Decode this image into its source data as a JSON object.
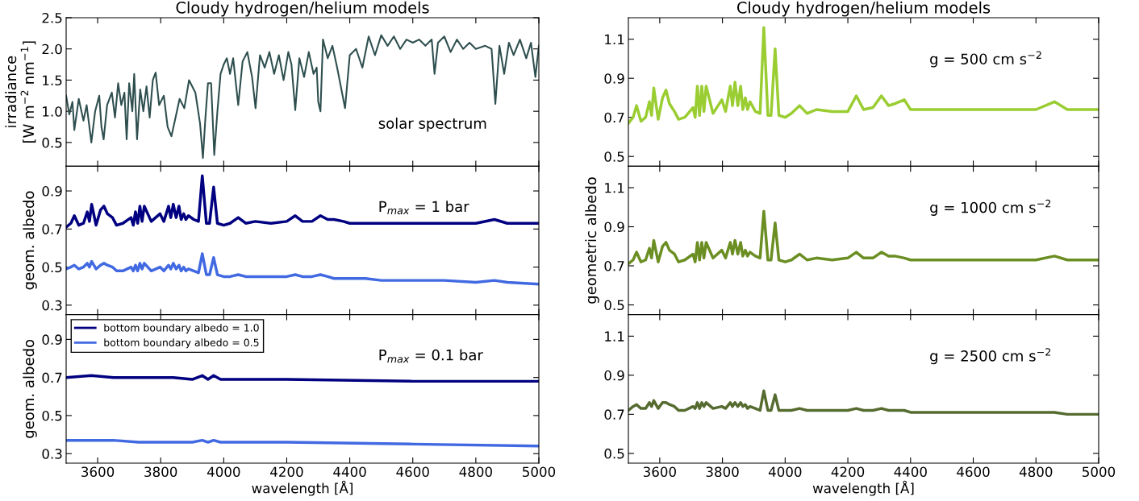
{
  "chart_data": [
    {
      "type": "line",
      "title": "Cloudy hydrogen/helium models",
      "ylabel": "irradiance\n[W m$^{−2}$ nm$^{−1}$]",
      "annotations": [
        "solar spectrum"
      ],
      "xlim": [
        3500,
        5000
      ],
      "xticks": [
        3600,
        3800,
        4000,
        4200,
        4400,
        4600,
        4800,
        5000
      ],
      "ylim": [
        0.12,
        2.5
      ],
      "yticks": [
        0.5,
        {
          "value": 1,
          "label": "1.0"
        },
        1.5,
        {
          "value": 2,
          "label": "2.0"
        },
        2.5
      ],
      "tick_labels": "y",
      "x": [
        3500,
        3510,
        3520,
        3526,
        3540,
        3555,
        3565,
        3580,
        3592,
        3605,
        3612,
        3619,
        3630,
        3645,
        3655,
        3665,
        3675,
        3685,
        3692,
        3700,
        3710,
        3716,
        3725,
        3735,
        3745,
        3755,
        3765,
        3775,
        3784,
        3795,
        3810,
        3822,
        3834,
        3845,
        3860,
        3875,
        3890,
        3900,
        3910,
        3925,
        3934,
        3942,
        3950,
        3960,
        3970,
        3980,
        3990,
        4000,
        4010,
        4020,
        4030,
        4046,
        4060,
        4075,
        4090,
        4101,
        4115,
        4130,
        4145,
        4160,
        4175,
        4190,
        4205,
        4215,
        4227,
        4240,
        4255,
        4270,
        4285,
        4295,
        4300,
        4307,
        4315,
        4330,
        4345,
        4360,
        4385,
        4400,
        4420,
        4440,
        4460,
        4480,
        4500,
        4520,
        4540,
        4560,
        4580,
        4600,
        4620,
        4640,
        4660,
        4669,
        4680,
        4700,
        4720,
        4740,
        4760,
        4780,
        4800,
        4830,
        4850,
        4862,
        4875,
        4890,
        4905,
        4920,
        4940,
        4960,
        4975,
        4989,
        5000
      ],
      "series": [
        {
          "color": "#2f4f4f",
          "values": [
            1.25,
            0.95,
            1.15,
            0.7,
            1.2,
            0.85,
            1.1,
            0.5,
            1.0,
            1.25,
            0.75,
            0.55,
            1.1,
            1.3,
            0.9,
            1.45,
            1.1,
            1.3,
            0.55,
            1.45,
            1.0,
            1.6,
            0.55,
            1.35,
            1.0,
            1.4,
            0.9,
            1.5,
            1.62,
            1.1,
            1.25,
            0.75,
            0.6,
            0.85,
            1.2,
            1.05,
            1.5,
            1.4,
            1.3,
            0.8,
            0.25,
            0.9,
            1.45,
            1.45,
            0.3,
            1.0,
            1.6,
            1.75,
            1.85,
            1.6,
            1.85,
            1.1,
            1.8,
            1.95,
            1.55,
            1.05,
            1.9,
            1.7,
            1.95,
            1.6,
            1.9,
            1.5,
            1.95,
            1.75,
            1.02,
            1.85,
            1.55,
            1.95,
            1.6,
            1.7,
            1.15,
            1.0,
            2.15,
            1.85,
            2.05,
            1.7,
            1.05,
            1.9,
            2.0,
            1.7,
            2.2,
            1.9,
            2.22,
            2.05,
            2.2,
            2.0,
            2.15,
            2.1,
            2.15,
            2.05,
            2.15,
            1.6,
            2.1,
            2.2,
            1.95,
            2.15,
            2.0,
            2.1,
            2.0,
            2.05,
            2.0,
            1.12,
            2.05,
            1.6,
            2.1,
            1.9,
            2.15,
            1.85,
            2.1,
            1.55,
            2.05
          ]
        }
      ]
    },
    {
      "type": "line",
      "ylabel": "geom. albedo",
      "annotations": [
        "P$_{max}$ = 1 bar"
      ],
      "xlim": [
        3500,
        5000
      ],
      "xticks": [
        3600,
        3800,
        4000,
        4200,
        4400,
        4600,
        4800,
        5000
      ],
      "ylim": [
        0.25,
        1.03
      ],
      "yticks": [
        0.3,
        0.5,
        0.7,
        0.9
      ],
      "tick_labels": "y",
      "x": [
        3500,
        3515,
        3526,
        3540,
        3555,
        3567,
        3574,
        3581,
        3595,
        3609,
        3620,
        3631,
        3647,
        3660,
        3680,
        3706,
        3713,
        3720,
        3727,
        3734,
        3741,
        3748,
        3770,
        3798,
        3810,
        3825,
        3832,
        3840,
        3849,
        3858,
        3865,
        3873,
        3880,
        3888,
        3905,
        3920,
        3932,
        3945,
        3955,
        3968,
        3980,
        4000,
        4020,
        4046,
        4070,
        4100,
        4150,
        4200,
        4227,
        4250,
        4280,
        4307,
        4330,
        4350,
        4380,
        4400,
        4450,
        4500,
        4600,
        4700,
        4800,
        4859,
        4900,
        5000
      ],
      "series": [
        {
          "color": "#000080",
          "values": [
            0.71,
            0.73,
            0.77,
            0.72,
            0.73,
            0.79,
            0.74,
            0.83,
            0.72,
            0.8,
            0.82,
            0.78,
            0.76,
            0.72,
            0.73,
            0.76,
            0.72,
            0.79,
            0.73,
            0.82,
            0.74,
            0.82,
            0.74,
            0.78,
            0.74,
            0.82,
            0.76,
            0.83,
            0.76,
            0.82,
            0.75,
            0.78,
            0.75,
            0.77,
            0.75,
            0.74,
            0.98,
            0.73,
            0.73,
            0.92,
            0.73,
            0.72,
            0.73,
            0.76,
            0.73,
            0.74,
            0.73,
            0.74,
            0.77,
            0.74,
            0.74,
            0.77,
            0.75,
            0.75,
            0.74,
            0.73,
            0.73,
            0.73,
            0.73,
            0.73,
            0.73,
            0.75,
            0.73,
            0.73
          ]
        },
        {
          "color": "#4169e1",
          "values": [
            0.49,
            0.5,
            0.51,
            0.49,
            0.5,
            0.52,
            0.5,
            0.53,
            0.49,
            0.51,
            0.52,
            0.51,
            0.5,
            0.48,
            0.48,
            0.5,
            0.48,
            0.51,
            0.48,
            0.52,
            0.49,
            0.52,
            0.48,
            0.5,
            0.48,
            0.51,
            0.49,
            0.52,
            0.49,
            0.51,
            0.48,
            0.5,
            0.48,
            0.49,
            0.48,
            0.47,
            0.57,
            0.46,
            0.46,
            0.55,
            0.46,
            0.45,
            0.45,
            0.46,
            0.45,
            0.45,
            0.45,
            0.45,
            0.46,
            0.45,
            0.45,
            0.46,
            0.45,
            0.44,
            0.44,
            0.44,
            0.44,
            0.43,
            0.43,
            0.43,
            0.42,
            0.43,
            0.42,
            0.41
          ]
        }
      ]
    },
    {
      "type": "line",
      "ylabel": "geom. albedo",
      "xlabel": "wavelength [Å]",
      "annotations": [
        "P$_{max}$ = 0.1 bar"
      ],
      "xlim": [
        3500,
        5000
      ],
      "xticks": [
        3600,
        3800,
        4000,
        4200,
        4400,
        4600,
        4800,
        5000
      ],
      "ylim": [
        0.25,
        1.03
      ],
      "yticks": [
        0.3,
        0.5,
        0.7,
        0.9
      ],
      "legend": "top left",
      "x": [
        3500,
        3580,
        3650,
        3730,
        3840,
        3900,
        3932,
        3950,
        3968,
        3990,
        4200,
        4600,
        5000
      ],
      "series": [
        {
          "name": "bottom boundary albedo = 1.0",
          "color": "#000080",
          "values": [
            0.7,
            0.71,
            0.7,
            0.7,
            0.7,
            0.69,
            0.71,
            0.69,
            0.71,
            0.69,
            0.69,
            0.68,
            0.68
          ]
        },
        {
          "name": "bottom boundary albedo = 0.5",
          "color": "#4169e1",
          "values": [
            0.37,
            0.37,
            0.37,
            0.36,
            0.36,
            0.36,
            0.37,
            0.36,
            0.37,
            0.36,
            0.36,
            0.35,
            0.34
          ]
        }
      ]
    },
    {
      "type": "line",
      "title": "Cloudy hydrogen/helium models",
      "annotations": [
        "g = 500 cm s$^{−2}$"
      ],
      "xlim": [
        3500,
        5000
      ],
      "xticks": [
        3600,
        3800,
        4000,
        4200,
        4400,
        4600,
        4800,
        5000
      ],
      "ylim": [
        0.45,
        1.21
      ],
      "yticks": [
        0.5,
        0.7,
        0.9,
        1.1
      ],
      "tick_labels": "y",
      "x": [
        3500,
        3515,
        3526,
        3540,
        3555,
        3567,
        3574,
        3581,
        3595,
        3609,
        3620,
        3631,
        3647,
        3660,
        3680,
        3706,
        3713,
        3720,
        3727,
        3734,
        3741,
        3748,
        3770,
        3798,
        3810,
        3825,
        3832,
        3840,
        3849,
        3858,
        3865,
        3873,
        3880,
        3888,
        3905,
        3920,
        3932,
        3945,
        3955,
        3968,
        3980,
        4000,
        4020,
        4046,
        4070,
        4100,
        4150,
        4200,
        4227,
        4250,
        4280,
        4307,
        4330,
        4350,
        4380,
        4400,
        4450,
        4500,
        4600,
        4700,
        4800,
        4859,
        4900,
        5000
      ],
      "series": [
        {
          "color": "#9acd32",
          "values": [
            0.67,
            0.7,
            0.76,
            0.68,
            0.7,
            0.78,
            0.71,
            0.85,
            0.69,
            0.8,
            0.84,
            0.77,
            0.73,
            0.69,
            0.7,
            0.75,
            0.7,
            0.86,
            0.71,
            0.86,
            0.73,
            0.86,
            0.72,
            0.79,
            0.73,
            0.86,
            0.76,
            0.88,
            0.76,
            0.86,
            0.74,
            0.8,
            0.74,
            0.78,
            0.73,
            0.72,
            1.16,
            0.71,
            0.71,
            1.05,
            0.71,
            0.7,
            0.72,
            0.76,
            0.72,
            0.74,
            0.73,
            0.73,
            0.81,
            0.74,
            0.75,
            0.81,
            0.76,
            0.77,
            0.79,
            0.74,
            0.74,
            0.74,
            0.74,
            0.74,
            0.74,
            0.78,
            0.74,
            0.74
          ]
        }
      ]
    },
    {
      "type": "line",
      "ylabel": "geometric albedo",
      "annotations": [
        "g = 1000 cm s$^{−2}$"
      ],
      "xlim": [
        3500,
        5000
      ],
      "xticks": [
        3600,
        3800,
        4000,
        4200,
        4400,
        4600,
        4800,
        5000
      ],
      "ylim": [
        0.45,
        1.21
      ],
      "yticks": [
        0.5,
        0.7,
        0.9,
        1.1
      ],
      "tick_labels": "y",
      "x": [
        3500,
        3515,
        3526,
        3540,
        3555,
        3567,
        3574,
        3581,
        3595,
        3609,
        3620,
        3631,
        3647,
        3660,
        3680,
        3706,
        3713,
        3720,
        3727,
        3734,
        3741,
        3748,
        3770,
        3798,
        3810,
        3825,
        3832,
        3840,
        3849,
        3858,
        3865,
        3873,
        3880,
        3888,
        3905,
        3920,
        3932,
        3945,
        3955,
        3968,
        3980,
        4000,
        4020,
        4046,
        4070,
        4100,
        4150,
        4200,
        4227,
        4250,
        4280,
        4307,
        4330,
        4350,
        4380,
        4400,
        4450,
        4500,
        4600,
        4700,
        4800,
        4859,
        4900,
        5000
      ],
      "series": [
        {
          "color": "#6b8e23",
          "values": [
            0.71,
            0.73,
            0.77,
            0.72,
            0.73,
            0.79,
            0.74,
            0.83,
            0.72,
            0.8,
            0.82,
            0.78,
            0.76,
            0.72,
            0.73,
            0.76,
            0.72,
            0.82,
            0.73,
            0.82,
            0.74,
            0.82,
            0.74,
            0.78,
            0.74,
            0.82,
            0.76,
            0.83,
            0.76,
            0.82,
            0.75,
            0.78,
            0.75,
            0.77,
            0.75,
            0.74,
            0.98,
            0.73,
            0.73,
            0.92,
            0.73,
            0.72,
            0.73,
            0.76,
            0.73,
            0.74,
            0.73,
            0.74,
            0.77,
            0.74,
            0.74,
            0.77,
            0.75,
            0.75,
            0.74,
            0.73,
            0.73,
            0.73,
            0.73,
            0.73,
            0.73,
            0.75,
            0.73,
            0.73
          ]
        }
      ]
    },
    {
      "type": "line",
      "xlabel": "wavelength [Å]",
      "annotations": [
        "g = 2500 cm s$^{−2}$"
      ],
      "xlim": [
        3500,
        5000
      ],
      "xticks": [
        3600,
        3800,
        4000,
        4200,
        4400,
        4600,
        4800,
        5000
      ],
      "ylim": [
        0.45,
        1.21
      ],
      "yticks": [
        0.5,
        0.7,
        0.9,
        1.1
      ],
      "x": [
        3500,
        3515,
        3526,
        3540,
        3555,
        3567,
        3574,
        3581,
        3595,
        3609,
        3620,
        3631,
        3647,
        3660,
        3680,
        3706,
        3713,
        3720,
        3727,
        3734,
        3741,
        3748,
        3770,
        3798,
        3810,
        3825,
        3832,
        3840,
        3849,
        3858,
        3865,
        3873,
        3880,
        3888,
        3905,
        3920,
        3932,
        3945,
        3955,
        3968,
        3980,
        4000,
        4020,
        4046,
        4070,
        4100,
        4150,
        4200,
        4227,
        4250,
        4280,
        4307,
        4330,
        4350,
        4380,
        4400,
        4450,
        4500,
        4600,
        4700,
        4800,
        4859,
        4900,
        5000
      ],
      "series": [
        {
          "color": "#556b2f",
          "values": [
            0.72,
            0.74,
            0.75,
            0.73,
            0.73,
            0.76,
            0.74,
            0.77,
            0.73,
            0.76,
            0.76,
            0.75,
            0.74,
            0.72,
            0.72,
            0.74,
            0.73,
            0.76,
            0.73,
            0.76,
            0.74,
            0.76,
            0.73,
            0.74,
            0.73,
            0.76,
            0.74,
            0.76,
            0.74,
            0.76,
            0.74,
            0.75,
            0.73,
            0.74,
            0.73,
            0.72,
            0.82,
            0.72,
            0.72,
            0.8,
            0.72,
            0.72,
            0.72,
            0.73,
            0.72,
            0.72,
            0.72,
            0.72,
            0.73,
            0.72,
            0.72,
            0.73,
            0.72,
            0.72,
            0.72,
            0.71,
            0.71,
            0.71,
            0.71,
            0.71,
            0.71,
            0.71,
            0.7,
            0.7
          ]
        }
      ]
    }
  ]
}
